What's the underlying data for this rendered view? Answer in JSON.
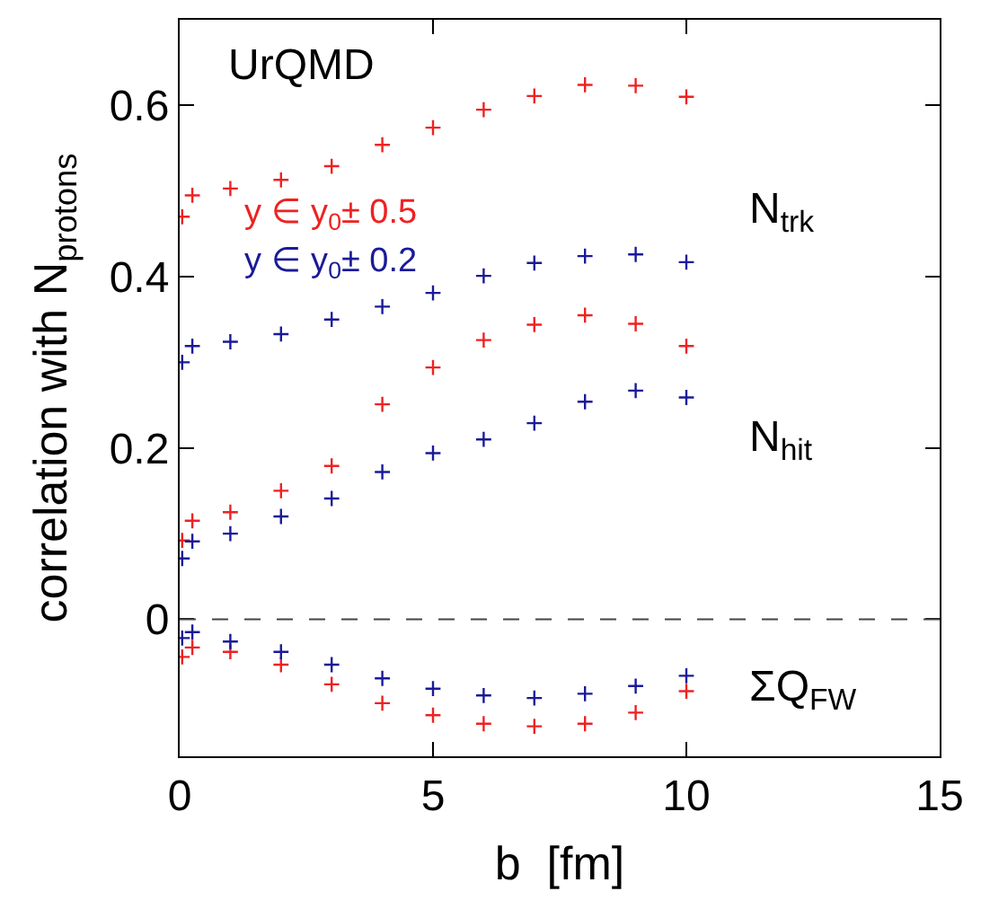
{
  "chart_data": {
    "type": "scatter",
    "xlabel": "b  [fm]",
    "ylabel": "correlation with N$_{protons}$",
    "x": [
      0.05,
      0.25,
      1,
      2,
      3,
      4,
      5,
      6,
      7,
      8,
      9,
      10
    ],
    "series": [
      {
        "name": "y ∈ y$_{0}$± 0.5",
        "color": "#ee2222",
        "values": [
          0.47,
          0.495,
          0.503,
          0.513,
          0.529,
          0.554,
          0.574,
          0.595,
          0.611,
          0.624,
          0.623,
          0.61
        ]
      },
      {
        "name": "y ∈ y$_{0}$± 0.2",
        "color": "#1a1a99",
        "values": [
          0.3,
          0.319,
          0.324,
          0.333,
          0.35,
          0.365,
          0.381,
          0.401,
          0.416,
          0.424,
          0.426,
          0.417
        ]
      },
      {
        "color": "#ee2222",
        "values": [
          0.092,
          0.115,
          0.125,
          0.15,
          0.179,
          0.251,
          0.294,
          0.326,
          0.344,
          0.355,
          0.345,
          0.319
        ]
      },
      {
        "color": "#1a1a99",
        "values": [
          0.071,
          0.091,
          0.1,
          0.12,
          0.141,
          0.172,
          0.194,
          0.21,
          0.229,
          0.254,
          0.267,
          0.259
        ]
      },
      {
        "color": "#ee2222",
        "values": [
          -0.044,
          -0.033,
          -0.038,
          -0.053,
          -0.076,
          -0.098,
          -0.112,
          -0.122,
          -0.125,
          -0.122,
          -0.109,
          -0.084
        ]
      },
      {
        "color": "#1a1a99",
        "values": [
          -0.022,
          -0.015,
          -0.026,
          -0.038,
          -0.053,
          -0.069,
          -0.081,
          -0.089,
          -0.092,
          -0.087,
          -0.078,
          -0.066
        ]
      }
    ],
    "xlim": [
      0,
      15
    ],
    "xticks": [
      0,
      5,
      10,
      15
    ],
    "ylim": [
      -0.16,
      0.7
    ],
    "yticks": [
      0,
      0.2,
      0.4,
      0.6
    ],
    "marker": "cross",
    "ref_lines": [
      {
        "axis": "y",
        "value": 0,
        "color": "#444444",
        "line_style": "dashed"
      }
    ],
    "annotations": [
      "UrQMD",
      "N$_{trk}$",
      "N$_{hit}$",
      "ΣQ$_{FW}$"
    ]
  }
}
